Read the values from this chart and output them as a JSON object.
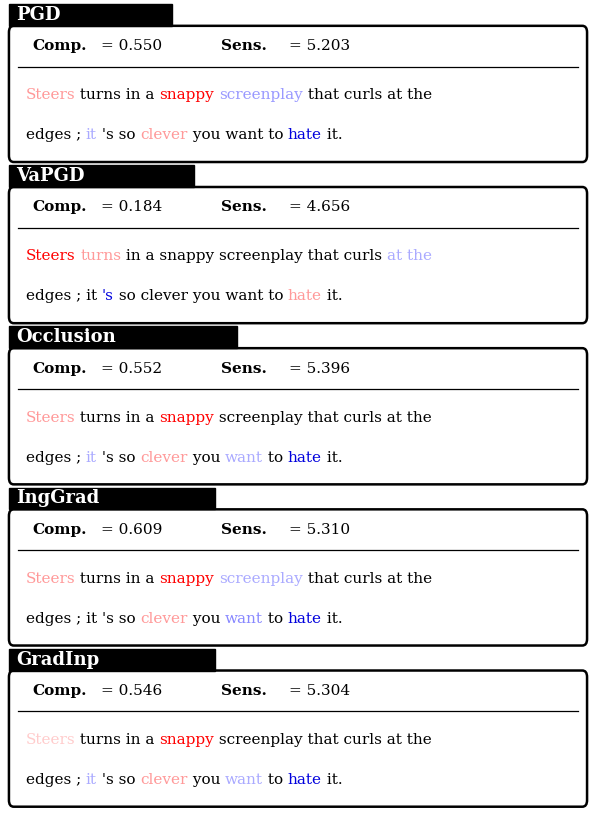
{
  "sections": [
    {
      "label": "PGD",
      "comp": "0.550",
      "sens": "5.203",
      "line1": [
        {
          "text": "Steers",
          "color": "#ff9999"
        },
        {
          "text": " turns in a ",
          "color": "#000000"
        },
        {
          "text": "snappy",
          "color": "#ff0000"
        },
        {
          "text": " ",
          "color": "#000000"
        },
        {
          "text": "screenplay",
          "color": "#9999ff"
        },
        {
          "text": " that curls at the",
          "color": "#000000"
        }
      ],
      "line2": [
        {
          "text": "edges ; ",
          "color": "#000000"
        },
        {
          "text": "it",
          "color": "#aaaaff"
        },
        {
          "text": " 's so ",
          "color": "#000000"
        },
        {
          "text": "clever",
          "color": "#ff9999"
        },
        {
          "text": " you want to ",
          "color": "#000000"
        },
        {
          "text": "hate",
          "color": "#0000dd"
        },
        {
          "text": " it.",
          "color": "#000000"
        }
      ]
    },
    {
      "label": "VaPGD",
      "comp": "0.184",
      "sens": "4.656",
      "line1": [
        {
          "text": "Steers",
          "color": "#ff0000"
        },
        {
          "text": " ",
          "color": "#000000"
        },
        {
          "text": "turns",
          "color": "#ff9999"
        },
        {
          "text": " in a snappy screenplay that curls ",
          "color": "#000000"
        },
        {
          "text": "at the",
          "color": "#aaaaff"
        }
      ],
      "line2": [
        {
          "text": "edges ; it ",
          "color": "#000000"
        },
        {
          "text": "'s",
          "color": "#0000dd"
        },
        {
          "text": " so clever you want to ",
          "color": "#000000"
        },
        {
          "text": "hate",
          "color": "#ff9999"
        },
        {
          "text": " it.",
          "color": "#000000"
        }
      ]
    },
    {
      "label": "Occlusion",
      "comp": "0.552",
      "sens": "5.396",
      "line1": [
        {
          "text": "Steers",
          "color": "#ff9999"
        },
        {
          "text": " turns in a ",
          "color": "#000000"
        },
        {
          "text": "snappy",
          "color": "#ff0000"
        },
        {
          "text": " screenplay that curls at the",
          "color": "#000000"
        }
      ],
      "line2": [
        {
          "text": "edges ; ",
          "color": "#000000"
        },
        {
          "text": "it",
          "color": "#aaaaff"
        },
        {
          "text": " 's so ",
          "color": "#000000"
        },
        {
          "text": "clever",
          "color": "#ff9999"
        },
        {
          "text": " you ",
          "color": "#000000"
        },
        {
          "text": "want",
          "color": "#aaaaff"
        },
        {
          "text": " to ",
          "color": "#000000"
        },
        {
          "text": "hate",
          "color": "#0000dd"
        },
        {
          "text": " it.",
          "color": "#000000"
        }
      ]
    },
    {
      "label": "IngGrad",
      "comp": "0.609",
      "sens": "5.310",
      "line1": [
        {
          "text": "Steers",
          "color": "#ff9999"
        },
        {
          "text": " turns in a ",
          "color": "#000000"
        },
        {
          "text": "snappy",
          "color": "#ff0000"
        },
        {
          "text": " ",
          "color": "#000000"
        },
        {
          "text": "screenplay",
          "color": "#aaaaff"
        },
        {
          "text": " that curls at the",
          "color": "#000000"
        }
      ],
      "line2": [
        {
          "text": "edges ; it 's so ",
          "color": "#000000"
        },
        {
          "text": "clever",
          "color": "#ff9999"
        },
        {
          "text": " you ",
          "color": "#000000"
        },
        {
          "text": "want",
          "color": "#8888ff"
        },
        {
          "text": " to ",
          "color": "#000000"
        },
        {
          "text": "hate",
          "color": "#0000dd"
        },
        {
          "text": " it.",
          "color": "#000000"
        }
      ]
    },
    {
      "label": "GradInp",
      "comp": "0.546",
      "sens": "5.304",
      "line1": [
        {
          "text": "Steers",
          "color": "#ffcccc"
        },
        {
          "text": " turns in a ",
          "color": "#000000"
        },
        {
          "text": "snappy",
          "color": "#ff0000"
        },
        {
          "text": " screenplay that curls at the",
          "color": "#000000"
        }
      ],
      "line2": [
        {
          "text": "edges ; ",
          "color": "#000000"
        },
        {
          "text": "it",
          "color": "#aaaaff"
        },
        {
          "text": " 's so ",
          "color": "#000000"
        },
        {
          "text": "clever",
          "color": "#ff9999"
        },
        {
          "text": " you ",
          "color": "#000000"
        },
        {
          "text": "want",
          "color": "#aaaaff"
        },
        {
          "text": " to ",
          "color": "#000000"
        },
        {
          "text": "hate",
          "color": "#0000dd"
        },
        {
          "text": " it.",
          "color": "#000000"
        }
      ]
    }
  ],
  "bg_color": "#ffffff",
  "label_bg": "#000000",
  "label_fg": "#ffffff",
  "box_border": "#000000",
  "fig_width": 5.96,
  "fig_height": 8.14,
  "dpi": 100
}
